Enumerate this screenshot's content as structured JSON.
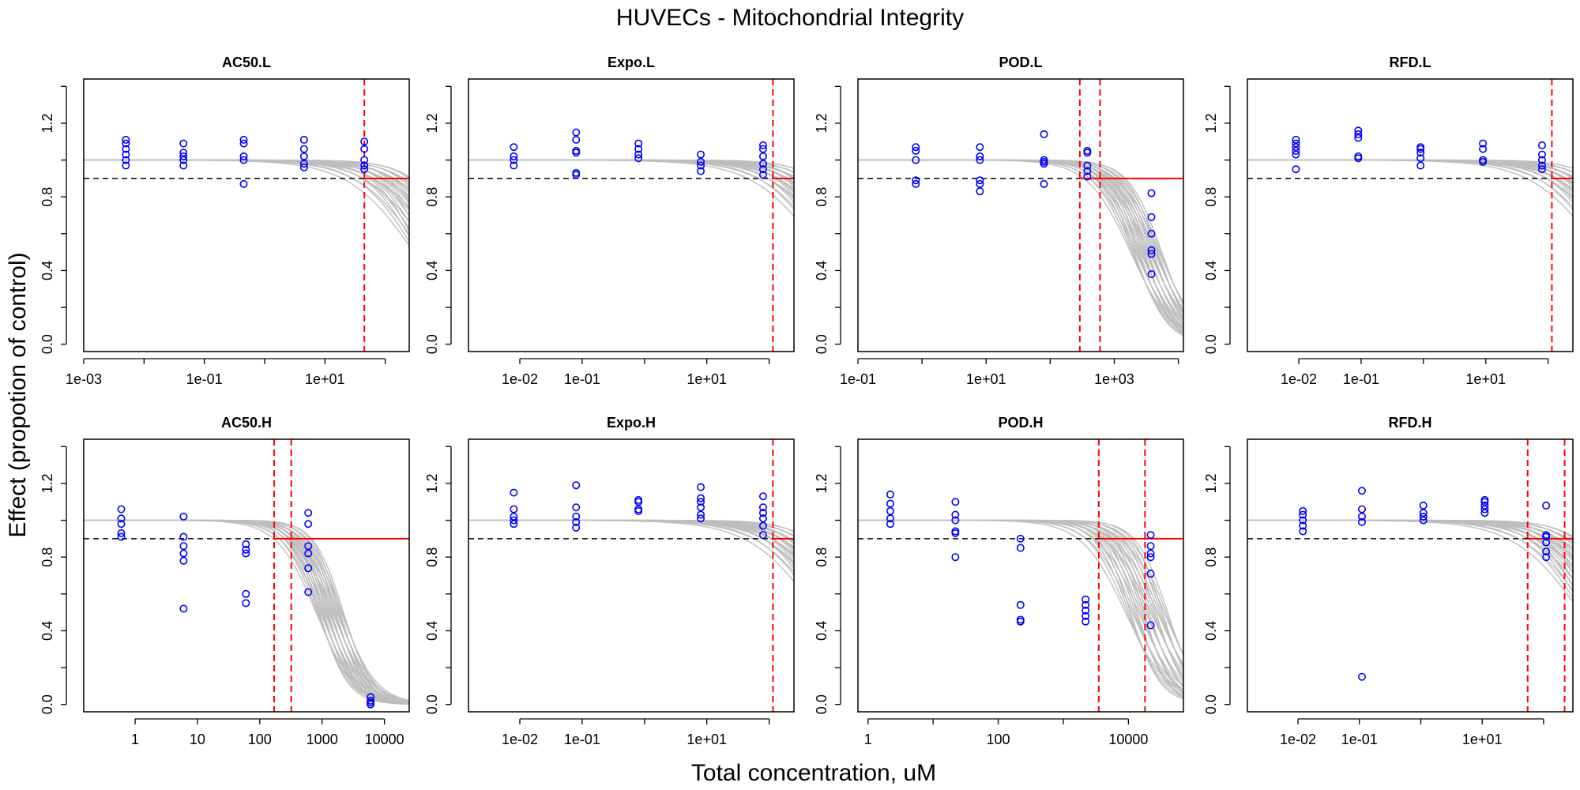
{
  "figure": {
    "title": "HUVECs -  Mitochondrial Integrity",
    "xlabel": "Total concentration, uM",
    "ylabel": "Effect (propotion of control)"
  },
  "style": {
    "curve_color": "#bebebe",
    "point_color": "#0000ff",
    "threshold_color": "#000000",
    "marker_color": "#ff0000"
  },
  "chart_data": [
    {
      "type": "scatter",
      "title": "AC50.L",
      "xscale": "log10",
      "xlim": [
        0.001,
        250
      ],
      "ylim": [
        0,
        1.4
      ],
      "xticks": [
        0.001,
        0.1,
        10
      ],
      "xtick_labels": [
        "1e-03",
        "1e-01",
        "1e+01"
      ],
      "yticks": [
        0,
        0.4,
        0.8,
        1.2
      ],
      "ytick_labels": [
        "0.0",
        "0.4",
        "0.8",
        "1.2"
      ],
      "threshold": 0.9,
      "markers": [
        45
      ],
      "curve_band": {
        "ac50": [
          300,
          2000
        ],
        "hill": [
          0.8,
          1.2
        ]
      },
      "points": [
        [
          0.005,
          0.97
        ],
        [
          0.005,
          1.0
        ],
        [
          0.005,
          1.03
        ],
        [
          0.005,
          1.06
        ],
        [
          0.005,
          1.09
        ],
        [
          0.005,
          1.11
        ],
        [
          0.045,
          0.97
        ],
        [
          0.045,
          1.0
        ],
        [
          0.045,
          1.02
        ],
        [
          0.045,
          1.04
        ],
        [
          0.045,
          1.09
        ],
        [
          0.45,
          0.87
        ],
        [
          0.45,
          1.0
        ],
        [
          0.45,
          1.02
        ],
        [
          0.45,
          1.09
        ],
        [
          0.45,
          1.11
        ],
        [
          4.5,
          0.96
        ],
        [
          4.5,
          0.98
        ],
        [
          4.5,
          1.02
        ],
        [
          4.5,
          1.06
        ],
        [
          4.5,
          1.11
        ],
        [
          45,
          0.95
        ],
        [
          45,
          0.97
        ],
        [
          45,
          1.0
        ],
        [
          45,
          1.06
        ],
        [
          45,
          1.1
        ]
      ]
    },
    {
      "type": "scatter",
      "title": "Expo.L",
      "xscale": "log10",
      "xlim": [
        0.0015,
        250
      ],
      "ylim": [
        0,
        1.4
      ],
      "xticks": [
        0.01,
        0.1,
        10
      ],
      "xtick_labels": [
        "1e-02",
        "1e-01",
        "1e+01"
      ],
      "yticks": [
        0,
        0.4,
        0.8,
        1.2
      ],
      "ytick_labels": [
        "0.0",
        "0.4",
        "0.8",
        "1.2"
      ],
      "threshold": 0.9,
      "markers": [
        115
      ],
      "curve_band": {
        "ac50": [
          700,
          4000
        ],
        "hill": [
          0.8,
          1.2
        ]
      },
      "points": [
        [
          0.008,
          0.97
        ],
        [
          0.008,
          1.0
        ],
        [
          0.008,
          1.02
        ],
        [
          0.008,
          1.07
        ],
        [
          0.08,
          0.92
        ],
        [
          0.08,
          0.93
        ],
        [
          0.08,
          1.04
        ],
        [
          0.08,
          1.05
        ],
        [
          0.08,
          1.11
        ],
        [
          0.08,
          1.15
        ],
        [
          0.8,
          1.01
        ],
        [
          0.8,
          1.03
        ],
        [
          0.8,
          1.06
        ],
        [
          0.8,
          1.09
        ],
        [
          8,
          0.94
        ],
        [
          8,
          0.97
        ],
        [
          8,
          0.99
        ],
        [
          8,
          1.03
        ],
        [
          80,
          0.92
        ],
        [
          80,
          0.95
        ],
        [
          80,
          0.98
        ],
        [
          80,
          1.02
        ],
        [
          80,
          1.06
        ],
        [
          80,
          1.08
        ]
      ]
    },
    {
      "type": "scatter",
      "title": "POD.L",
      "xscale": "log10",
      "xlim": [
        0.1,
        12000
      ],
      "ylim": [
        0,
        1.4
      ],
      "xticks": [
        0.1,
        10,
        1000
      ],
      "xtick_labels": [
        "1e-01",
        "1e+01",
        "1e+03"
      ],
      "yticks": [
        0,
        0.4,
        0.8,
        1.2
      ],
      "ytick_labels": [
        "0.0",
        "0.4",
        "0.8",
        "1.2"
      ],
      "threshold": 0.9,
      "markers": [
        290,
        600
      ],
      "curve_band": {
        "ac50": [
          1800,
          5500
        ],
        "hill": [
          1.3,
          1.8
        ]
      },
      "points": [
        [
          0.8,
          0.87
        ],
        [
          0.8,
          0.89
        ],
        [
          0.8,
          1.0
        ],
        [
          0.8,
          1.05
        ],
        [
          0.8,
          1.07
        ],
        [
          8,
          0.83
        ],
        [
          8,
          0.87
        ],
        [
          8,
          0.89
        ],
        [
          8,
          1.0
        ],
        [
          8,
          1.02
        ],
        [
          8,
          1.07
        ],
        [
          80,
          0.87
        ],
        [
          80,
          0.98
        ],
        [
          80,
          0.99
        ],
        [
          80,
          1.0
        ],
        [
          80,
          1.14
        ],
        [
          380,
          0.91
        ],
        [
          380,
          0.94
        ],
        [
          380,
          0.97
        ],
        [
          380,
          1.04
        ],
        [
          380,
          1.05
        ],
        [
          3800,
          0.38
        ],
        [
          3800,
          0.49
        ],
        [
          3800,
          0.51
        ],
        [
          3800,
          0.6
        ],
        [
          3800,
          0.69
        ],
        [
          3800,
          0.82
        ]
      ]
    },
    {
      "type": "scatter",
      "title": "RFD.L",
      "xscale": "log10",
      "xlim": [
        0.0015,
        250
      ],
      "ylim": [
        0,
        1.4
      ],
      "xticks": [
        0.01,
        0.1,
        10
      ],
      "xtick_labels": [
        "1e-02",
        "1e-01",
        "1e+01"
      ],
      "yticks": [
        0,
        0.4,
        0.8,
        1.2
      ],
      "ytick_labels": [
        "0.0",
        "0.4",
        "0.8",
        "1.2"
      ],
      "threshold": 0.9,
      "markers": [
        115
      ],
      "curve_band": {
        "ac50": [
          700,
          4000
        ],
        "hill": [
          0.8,
          1.2
        ]
      },
      "points": [
        [
          0.009,
          0.95
        ],
        [
          0.009,
          1.03
        ],
        [
          0.009,
          1.05
        ],
        [
          0.009,
          1.07
        ],
        [
          0.009,
          1.09
        ],
        [
          0.009,
          1.11
        ],
        [
          0.09,
          1.01
        ],
        [
          0.09,
          1.02
        ],
        [
          0.09,
          1.12
        ],
        [
          0.09,
          1.14
        ],
        [
          0.09,
          1.16
        ],
        [
          0.9,
          0.97
        ],
        [
          0.9,
          1.01
        ],
        [
          0.9,
          1.04
        ],
        [
          0.9,
          1.06
        ],
        [
          0.9,
          1.07
        ],
        [
          9,
          0.99
        ],
        [
          9,
          1.0
        ],
        [
          9,
          1.06
        ],
        [
          9,
          1.09
        ],
        [
          80,
          0.95
        ],
        [
          80,
          0.97
        ],
        [
          80,
          1.0
        ],
        [
          80,
          1.03
        ],
        [
          80,
          1.08
        ]
      ]
    },
    {
      "type": "scatter",
      "title": "AC50.H",
      "xscale": "log10",
      "xlim": [
        0.15,
        25000
      ],
      "ylim": [
        0,
        1.4
      ],
      "xticks": [
        1,
        10,
        100,
        1000,
        10000
      ],
      "xtick_labels": [
        "1",
        "10",
        "100",
        "1000",
        "10000"
      ],
      "yticks": [
        0,
        0.4,
        0.8,
        1.2
      ],
      "ytick_labels": [
        "0.0",
        "0.4",
        "0.8",
        "1.2"
      ],
      "threshold": 0.9,
      "markers": [
        170,
        320
      ],
      "curve_band": {
        "ac50": [
          800,
          2200
        ],
        "hill": [
          1.4,
          2.0
        ]
      },
      "points": [
        [
          0.6,
          0.91
        ],
        [
          0.6,
          0.93
        ],
        [
          0.6,
          0.98
        ],
        [
          0.6,
          1.01
        ],
        [
          0.6,
          1.06
        ],
        [
          6,
          0.52
        ],
        [
          6,
          0.78
        ],
        [
          6,
          0.82
        ],
        [
          6,
          0.86
        ],
        [
          6,
          0.91
        ],
        [
          6,
          1.02
        ],
        [
          60,
          0.55
        ],
        [
          60,
          0.6
        ],
        [
          60,
          0.82
        ],
        [
          60,
          0.84
        ],
        [
          60,
          0.87
        ],
        [
          600,
          0.61
        ],
        [
          600,
          0.74
        ],
        [
          600,
          0.82
        ],
        [
          600,
          0.86
        ],
        [
          600,
          0.98
        ],
        [
          600,
          1.04
        ],
        [
          6000,
          0.0
        ],
        [
          6000,
          0.01
        ],
        [
          6000,
          0.02
        ],
        [
          6000,
          0.04
        ]
      ]
    },
    {
      "type": "scatter",
      "title": "Expo.H",
      "xscale": "log10",
      "xlim": [
        0.0015,
        250
      ],
      "ylim": [
        0,
        1.4
      ],
      "xticks": [
        0.01,
        0.1,
        10
      ],
      "xtick_labels": [
        "1e-02",
        "1e-01",
        "1e+01"
      ],
      "yticks": [
        0,
        0.4,
        0.8,
        1.2
      ],
      "ytick_labels": [
        "0.0",
        "0.4",
        "0.8",
        "1.2"
      ],
      "threshold": 0.9,
      "markers": [
        115
      ],
      "curve_band": {
        "ac50": [
          600,
          3000
        ],
        "hill": [
          0.8,
          1.2
        ]
      },
      "points": [
        [
          0.008,
          0.98
        ],
        [
          0.008,
          1.0
        ],
        [
          0.008,
          1.02
        ],
        [
          0.008,
          1.06
        ],
        [
          0.008,
          1.15
        ],
        [
          0.08,
          0.96
        ],
        [
          0.08,
          0.99
        ],
        [
          0.08,
          1.02
        ],
        [
          0.08,
          1.07
        ],
        [
          0.08,
          1.19
        ],
        [
          0.8,
          1.05
        ],
        [
          0.8,
          1.06
        ],
        [
          0.8,
          1.1
        ],
        [
          0.8,
          1.11
        ],
        [
          8,
          1.01
        ],
        [
          8,
          1.03
        ],
        [
          8,
          1.07
        ],
        [
          8,
          1.1
        ],
        [
          8,
          1.12
        ],
        [
          8,
          1.18
        ],
        [
          80,
          0.92
        ],
        [
          80,
          0.97
        ],
        [
          80,
          1.01
        ],
        [
          80,
          1.04
        ],
        [
          80,
          1.07
        ],
        [
          80,
          1.13
        ]
      ]
    },
    {
      "type": "scatter",
      "title": "POD.H",
      "xscale": "log10",
      "xlim": [
        0.7,
        70000
      ],
      "ylim": [
        0,
        1.4
      ],
      "xticks": [
        1,
        100,
        10000
      ],
      "xtick_labels": [
        "1",
        "100",
        "10000"
      ],
      "yticks": [
        0,
        0.4,
        0.8,
        1.2
      ],
      "ytick_labels": [
        "0.0",
        "0.4",
        "0.8",
        "1.2"
      ],
      "threshold": 0.9,
      "markers": [
        3500,
        18000
      ],
      "curve_band": {
        "ac50": [
          9000,
          40000
        ],
        "hill": [
          1.3,
          2.0
        ]
      },
      "points": [
        [
          2.2,
          0.98
        ],
        [
          2.2,
          1.01
        ],
        [
          2.2,
          1.05
        ],
        [
          2.2,
          1.09
        ],
        [
          2.2,
          1.14
        ],
        [
          22,
          0.8
        ],
        [
          22,
          0.93
        ],
        [
          22,
          0.94
        ],
        [
          22,
          1.0
        ],
        [
          22,
          1.03
        ],
        [
          22,
          1.1
        ],
        [
          220,
          0.45
        ],
        [
          220,
          0.46
        ],
        [
          220,
          0.54
        ],
        [
          220,
          0.85
        ],
        [
          220,
          0.9
        ],
        [
          2200,
          0.45
        ],
        [
          2200,
          0.48
        ],
        [
          2200,
          0.51
        ],
        [
          2200,
          0.54
        ],
        [
          2200,
          0.57
        ],
        [
          22000,
          0.43
        ],
        [
          22000,
          0.71
        ],
        [
          22000,
          0.8
        ],
        [
          22000,
          0.82
        ],
        [
          22000,
          0.86
        ],
        [
          22000,
          0.92
        ]
      ]
    },
    {
      "type": "scatter",
      "title": "RFD.H",
      "xscale": "log10",
      "xlim": [
        0.0015,
        300
      ],
      "ylim": [
        0,
        1.4
      ],
      "xticks": [
        0.01,
        0.1,
        10
      ],
      "xtick_labels": [
        "1e-02",
        "1e-01",
        "1e+01"
      ],
      "yticks": [
        0,
        0.4,
        0.8,
        1.2
      ],
      "ytick_labels": [
        "0.0",
        "0.4",
        "0.8",
        "1.2"
      ],
      "threshold": 0.9,
      "markers": [
        55,
        220
      ],
      "curve_band": {
        "ac50": [
          400,
          2500
        ],
        "hill": [
          0.8,
          1.2
        ]
      },
      "points": [
        [
          0.012,
          0.94
        ],
        [
          0.012,
          0.97
        ],
        [
          0.012,
          1.0
        ],
        [
          0.012,
          1.03
        ],
        [
          0.012,
          1.05
        ],
        [
          0.11,
          0.15
        ],
        [
          0.11,
          0.99
        ],
        [
          0.11,
          1.02
        ],
        [
          0.11,
          1.06
        ],
        [
          0.11,
          1.16
        ],
        [
          1.1,
          1.0
        ],
        [
          1.1,
          1.02
        ],
        [
          1.1,
          1.04
        ],
        [
          1.1,
          1.08
        ],
        [
          11,
          1.04
        ],
        [
          11,
          1.06
        ],
        [
          11,
          1.08
        ],
        [
          11,
          1.1
        ],
        [
          11,
          1.11
        ],
        [
          110,
          0.8
        ],
        [
          110,
          0.83
        ],
        [
          110,
          0.88
        ],
        [
          110,
          0.91
        ],
        [
          110,
          0.92
        ],
        [
          110,
          1.08
        ]
      ]
    }
  ]
}
